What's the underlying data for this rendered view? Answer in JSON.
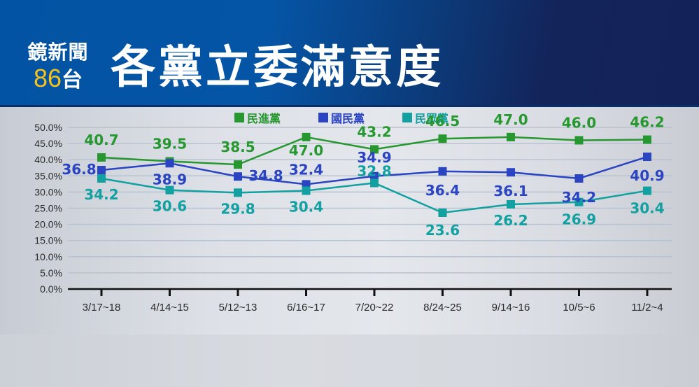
{
  "header": {
    "logo_line1": "鏡新聞",
    "logo_number": "86",
    "logo_suffix": "台",
    "title": "各黨立委滿意度"
  },
  "colors": {
    "dpp": "#26982f",
    "kmt": "#2a44c2",
    "tpp": "#12a0a0",
    "logo_yellow": "#f5c21b"
  },
  "chart_data": {
    "type": "line",
    "title": "各黨立委滿意度",
    "xlabel": "",
    "ylabel": "",
    "ylim": [
      0,
      50
    ],
    "yticks": [
      "0.0%",
      "5.0%",
      "10.0%",
      "15.0%",
      "20.0%",
      "25.0%",
      "30.0%",
      "35.0%",
      "40.0%",
      "45.0%",
      "50.0%"
    ],
    "categories": [
      "3/17~18",
      "4/14~15",
      "5/12~13",
      "6/16~17",
      "7/20~22",
      "8/24~25",
      "9/14~16",
      "10/5~6",
      "11/2~4"
    ],
    "grid": true,
    "legend_position": "top",
    "series": [
      {
        "name": "民進黨",
        "color": "#26982f",
        "values": [
          40.7,
          39.5,
          38.5,
          47.0,
          43.2,
          46.5,
          47.0,
          46.0,
          46.2
        ]
      },
      {
        "name": "國民黨",
        "color": "#2a44c2",
        "values": [
          36.8,
          38.9,
          34.8,
          32.4,
          34.9,
          36.4,
          36.1,
          34.2,
          40.9
        ]
      },
      {
        "name": "民眾黨",
        "color": "#12a0a0",
        "values": [
          34.2,
          30.6,
          29.8,
          30.4,
          32.8,
          23.6,
          26.2,
          26.9,
          30.4
        ]
      }
    ]
  }
}
